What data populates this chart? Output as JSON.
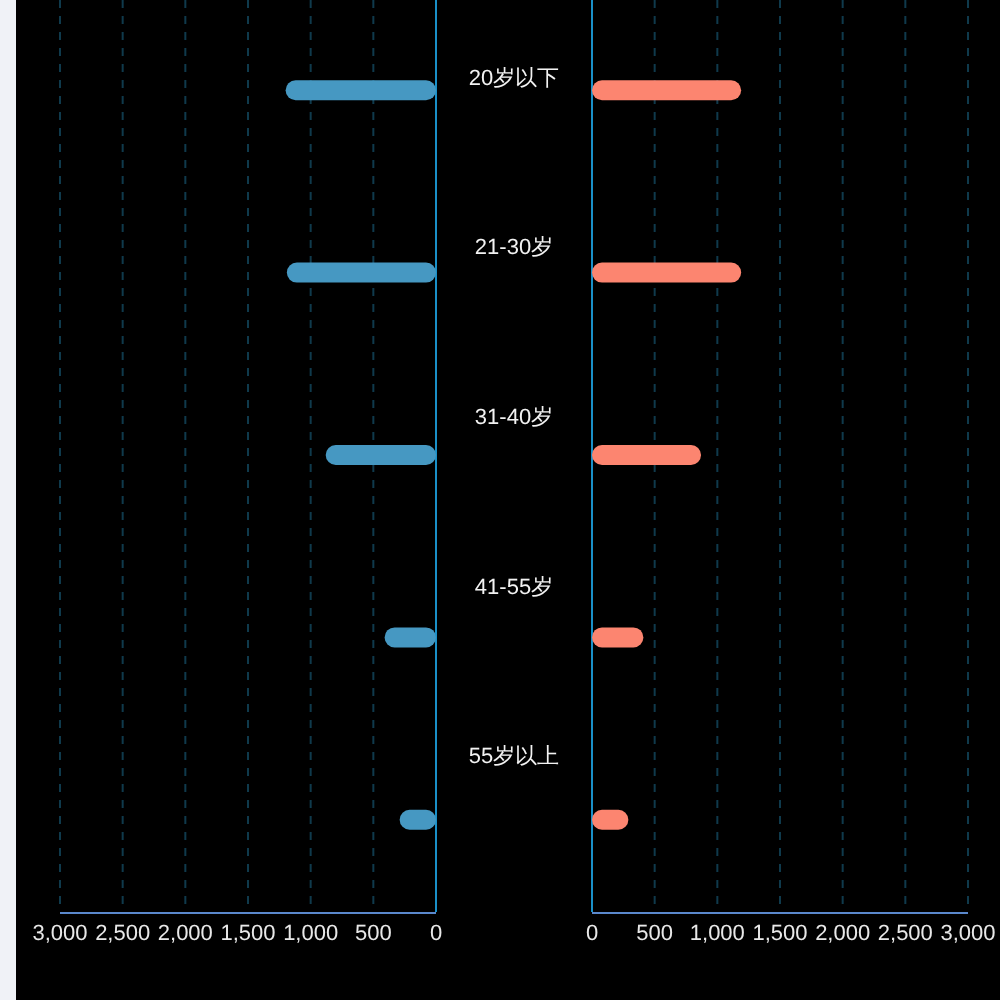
{
  "chart_data": [
    {
      "type": "bar",
      "orientation": "horizontal",
      "categories": [
        "20岁以下",
        "21-30岁",
        "31-40岁",
        "41-55岁",
        "55岁以上"
      ],
      "values": [
        1200,
        1190,
        880,
        410,
        290
      ],
      "color": "#4698c2",
      "xlim": [
        3000,
        0
      ],
      "xticks": [
        {
          "value": 3000,
          "label": "3,000"
        },
        {
          "value": 2500,
          "label": "2,500"
        },
        {
          "value": 2000,
          "label": "2,000"
        },
        {
          "value": 1500,
          "label": "1,500"
        },
        {
          "value": 1000,
          "label": "1,000"
        },
        {
          "value": 500,
          "label": "500"
        },
        {
          "value": 0,
          "label": "0"
        }
      ],
      "grid": "x"
    },
    {
      "type": "bar",
      "orientation": "horizontal",
      "categories": [
        null,
        null,
        null,
        null,
        null
      ],
      "values": [
        1190,
        1190,
        870,
        410,
        290
      ],
      "color": "#fc8570",
      "xlim": [
        0,
        3000
      ],
      "xticks": [
        {
          "value": 0,
          "label": "0"
        },
        {
          "value": 500,
          "label": "500"
        },
        {
          "value": 1000,
          "label": "1,000"
        },
        {
          "value": 1500,
          "label": "1,500"
        },
        {
          "value": 2000,
          "label": "2,000"
        },
        {
          "value": 2500,
          "label": "2,500"
        },
        {
          "value": 3000,
          "label": "3,000"
        }
      ],
      "grid": "x"
    }
  ]
}
